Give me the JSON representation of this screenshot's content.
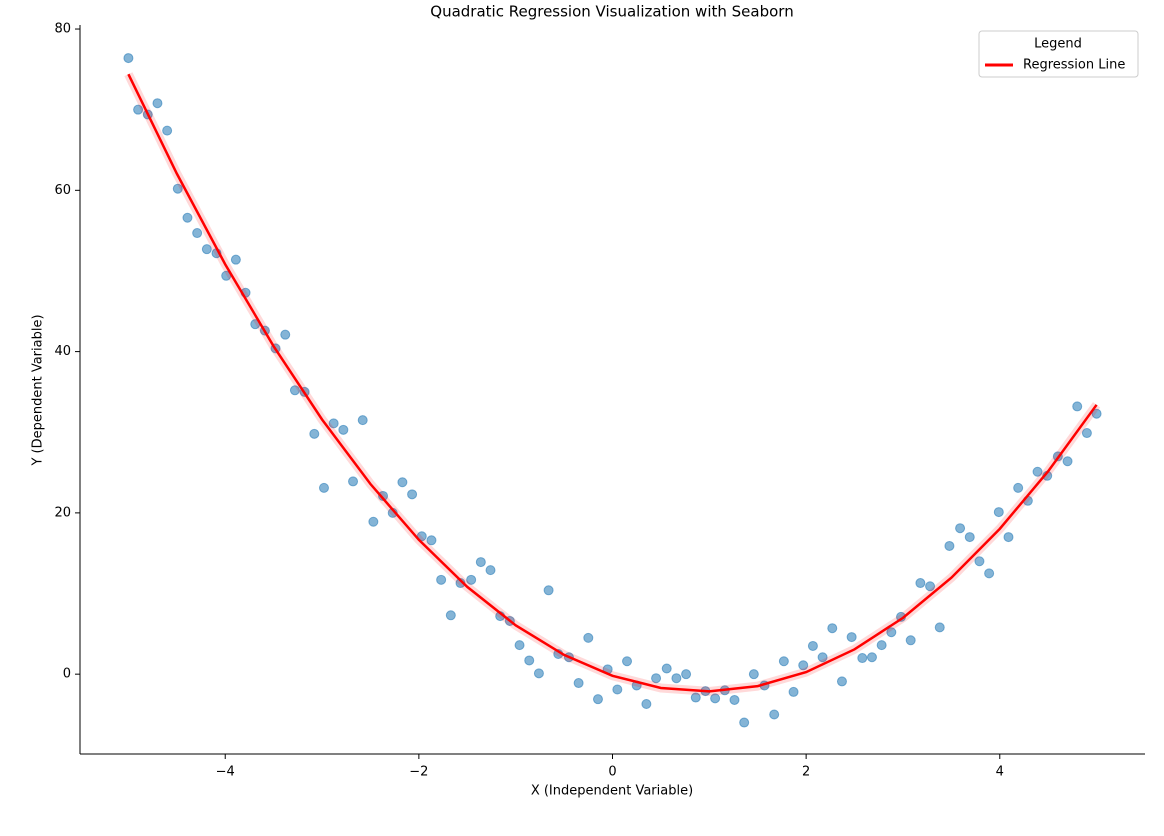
{
  "chart_data": {
    "type": "scatter",
    "title": "Quadratic Regression Visualization with Seaborn",
    "xlabel": "X (Independent Variable)",
    "ylabel": "Y (Dependent Variable)",
    "legend_title": "Legend",
    "legend": "upper right",
    "xlim": [
      -5.5,
      5.5
    ],
    "ylim": [
      -9.9,
      80.5
    ],
    "xticks": [
      {
        "value": -4,
        "label": "−4"
      },
      {
        "value": -2,
        "label": "−2"
      },
      0,
      2,
      4
    ],
    "yticks": [
      0,
      20,
      40,
      60,
      80
    ],
    "series": [
      {
        "color": "#1f77b4",
        "alpha": 0.55,
        "style": "points",
        "x": [
          -5.0,
          -4.9,
          -4.8,
          -4.7,
          -4.6,
          -4.49,
          -4.39,
          -4.29,
          -4.19,
          -4.09,
          -3.99,
          -3.89,
          -3.79,
          -3.69,
          -3.59,
          -3.48,
          -3.38,
          -3.28,
          -3.18,
          -3.08,
          -2.98,
          -2.88,
          -2.78,
          -2.68,
          -2.58,
          -2.47,
          -2.37,
          -2.27,
          -2.17,
          -2.07,
          -1.97,
          -1.87,
          -1.77,
          -1.67,
          -1.57,
          -1.46,
          -1.36,
          -1.26,
          -1.16,
          -1.06,
          -0.96,
          -0.86,
          -0.76,
          -0.66,
          -0.56,
          -0.45,
          -0.35,
          -0.25,
          -0.15,
          -0.05,
          0.05,
          0.15,
          0.25,
          0.35,
          0.45,
          0.56,
          0.66,
          0.76,
          0.86,
          0.96,
          1.06,
          1.16,
          1.26,
          1.36,
          1.46,
          1.57,
          1.67,
          1.77,
          1.87,
          1.97,
          2.07,
          2.17,
          2.27,
          2.37,
          2.47,
          2.58,
          2.68,
          2.78,
          2.88,
          2.98,
          3.08,
          3.18,
          3.28,
          3.38,
          3.48,
          3.59,
          3.69,
          3.79,
          3.89,
          3.99,
          4.09,
          4.19,
          4.29,
          4.39,
          4.49,
          4.6,
          4.7,
          4.8,
          4.9,
          5.0
        ],
        "values": [
          76.4,
          70.0,
          69.4,
          70.8,
          67.4,
          60.2,
          56.6,
          54.7,
          52.7,
          52.2,
          49.4,
          51.4,
          47.3,
          43.4,
          42.6,
          40.4,
          42.1,
          35.2,
          35.0,
          29.8,
          23.1,
          31.1,
          30.3,
          23.9,
          31.5,
          18.9,
          22.1,
          20.0,
          23.8,
          22.3,
          17.1,
          16.6,
          11.7,
          7.3,
          11.3,
          11.7,
          13.9,
          12.9,
          7.2,
          6.6,
          3.6,
          1.7,
          0.1,
          10.4,
          2.5,
          2.1,
          -1.1,
          4.5,
          -3.1,
          0.6,
          -1.9,
          1.6,
          -1.4,
          -3.7,
          -0.5,
          0.7,
          -0.5,
          0.0,
          -2.9,
          -2.1,
          -3.0,
          -2.0,
          -3.2,
          -6.0,
          0.0,
          -1.4,
          -5.0,
          1.6,
          -2.2,
          1.1,
          3.5,
          2.1,
          5.7,
          -0.9,
          4.6,
          2.0,
          2.1,
          3.6,
          5.2,
          7.1,
          4.2,
          11.3,
          10.9,
          5.8,
          15.9,
          18.1,
          17.0,
          14.0,
          12.5,
          20.1,
          17.0,
          23.1,
          21.5,
          25.1,
          24.6,
          27.0,
          26.4,
          33.2,
          29.9,
          32.3
        ]
      },
      {
        "name": "Regression Line",
        "color": "#ff0000",
        "style": "line",
        "x": [
          -5,
          -4.5,
          -4,
          -3.5,
          -3,
          -2.5,
          -2,
          -1.5,
          -1,
          -0.5,
          0,
          0.5,
          1,
          1.5,
          2,
          2.5,
          3,
          3.5,
          4,
          4.5,
          5
        ],
        "values": [
          74.4,
          62.07,
          50.82,
          40.66,
          31.58,
          23.58,
          16.66,
          10.82,
          6.06,
          2.39,
          -0.2,
          -1.71,
          -2.14,
          -1.48,
          0.26,
          3.08,
          6.98,
          11.96,
          18.02,
          25.17,
          33.4
        ]
      }
    ]
  }
}
